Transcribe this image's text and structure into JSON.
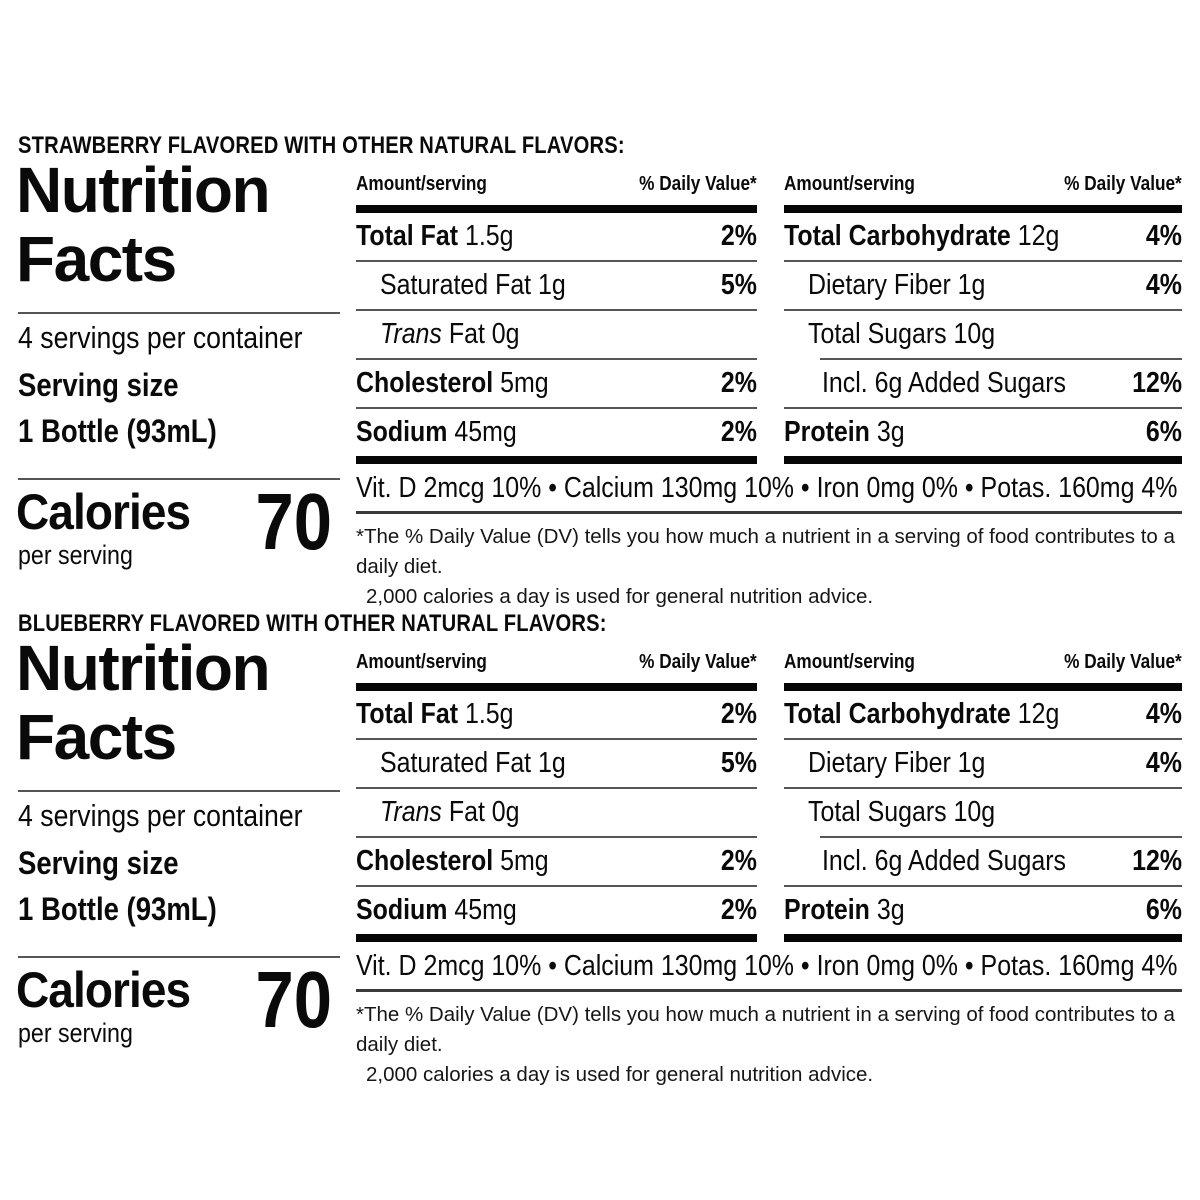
{
  "panels": [
    {
      "flavor_header": "STRAWBERRY FLAVORED WITH OTHER NATURAL FLAVORS:",
      "title_line1": "Nutrition",
      "title_line2": "Facts",
      "servings_per_container": "4 servings per container",
      "serving_size_label": "Serving size",
      "serving_size_value": "1 Bottle (93mL)",
      "calories_label": "Calories",
      "calories_sublabel": "per serving",
      "calories_value": "70",
      "col1": {
        "header_amount": "Amount/serving",
        "header_dv": "% Daily Value*",
        "rows": [
          {
            "parts": [
              {
                "t": "Total Fat",
                "s": "b"
              },
              {
                "t": " 1.5g",
                "s": "r"
              }
            ],
            "dv": "2%",
            "indent": 0
          },
          {
            "parts": [
              {
                "t": "Saturated Fat 1g",
                "s": "r"
              }
            ],
            "dv": "5%",
            "indent": 1
          },
          {
            "parts": [
              {
                "t": "Trans",
                "s": "i"
              },
              {
                "t": " Fat 0g",
                "s": "r"
              }
            ],
            "dv": "",
            "indent": 1
          },
          {
            "parts": [
              {
                "t": "Cholesterol",
                "s": "b"
              },
              {
                "t": " 5mg",
                "s": "r"
              }
            ],
            "dv": "2%",
            "indent": 0
          },
          {
            "parts": [
              {
                "t": "Sodium",
                "s": "b"
              },
              {
                "t": " 45mg",
                "s": "r"
              }
            ],
            "dv": "2%",
            "indent": 0
          }
        ]
      },
      "col2": {
        "header_amount": "Amount/serving",
        "header_dv": "% Daily Value*",
        "rows": [
          {
            "parts": [
              {
                "t": "Total Carbohydrate",
                "s": "b"
              },
              {
                "t": " 12g",
                "s": "r"
              }
            ],
            "dv": "4%",
            "indent": 0
          },
          {
            "parts": [
              {
                "t": "Dietary Fiber 1g",
                "s": "r"
              }
            ],
            "dv": "4%",
            "indent": 1
          },
          {
            "parts": [
              {
                "t": "Total Sugars 10g",
                "s": "r"
              }
            ],
            "dv": "",
            "indent": 1
          },
          {
            "parts": [
              {
                "t": "Incl. 6g Added Sugars",
                "s": "r"
              }
            ],
            "dv": "12%",
            "indent": 2,
            "sep_indent": true
          },
          {
            "parts": [
              {
                "t": "Protein",
                "s": "b"
              },
              {
                "t": " 3g",
                "s": "r"
              }
            ],
            "dv": "6%",
            "indent": 0
          }
        ]
      },
      "micronutrients": "Vit. D 2mcg 10% • Calcium 130mg 10% • Iron 0mg 0% • Potas. 160mg 4%",
      "footnote_line1": "*The % Daily Value (DV) tells you how much a nutrient in a serving of food contributes to a daily diet.",
      "footnote_line2": "2,000 calories a day is used for general nutrition advice."
    },
    {
      "flavor_header": "BLUEBERRY FLAVORED WITH OTHER NATURAL FLAVORS:",
      "title_line1": "Nutrition",
      "title_line2": "Facts",
      "servings_per_container": "4 servings per container",
      "serving_size_label": "Serving size",
      "serving_size_value": "1 Bottle (93mL)",
      "calories_label": "Calories",
      "calories_sublabel": "per serving",
      "calories_value": "70",
      "col1": {
        "header_amount": "Amount/serving",
        "header_dv": "% Daily Value*",
        "rows": [
          {
            "parts": [
              {
                "t": "Total Fat",
                "s": "b"
              },
              {
                "t": " 1.5g",
                "s": "r"
              }
            ],
            "dv": "2%",
            "indent": 0
          },
          {
            "parts": [
              {
                "t": "Saturated Fat 1g",
                "s": "r"
              }
            ],
            "dv": "5%",
            "indent": 1
          },
          {
            "parts": [
              {
                "t": "Trans",
                "s": "i"
              },
              {
                "t": " Fat 0g",
                "s": "r"
              }
            ],
            "dv": "",
            "indent": 1
          },
          {
            "parts": [
              {
                "t": "Cholesterol",
                "s": "b"
              },
              {
                "t": " 5mg",
                "s": "r"
              }
            ],
            "dv": "2%",
            "indent": 0
          },
          {
            "parts": [
              {
                "t": "Sodium",
                "s": "b"
              },
              {
                "t": " 45mg",
                "s": "r"
              }
            ],
            "dv": "2%",
            "indent": 0
          }
        ]
      },
      "col2": {
        "header_amount": "Amount/serving",
        "header_dv": "% Daily Value*",
        "rows": [
          {
            "parts": [
              {
                "t": "Total Carbohydrate",
                "s": "b"
              },
              {
                "t": " 12g",
                "s": "r"
              }
            ],
            "dv": "4%",
            "indent": 0
          },
          {
            "parts": [
              {
                "t": "Dietary Fiber 1g",
                "s": "r"
              }
            ],
            "dv": "4%",
            "indent": 1
          },
          {
            "parts": [
              {
                "t": "Total Sugars 10g",
                "s": "r"
              }
            ],
            "dv": "",
            "indent": 1
          },
          {
            "parts": [
              {
                "t": "Incl. 6g Added Sugars",
                "s": "r"
              }
            ],
            "dv": "12%",
            "indent": 2,
            "sep_indent": true
          },
          {
            "parts": [
              {
                "t": "Protein",
                "s": "b"
              },
              {
                "t": " 3g",
                "s": "r"
              }
            ],
            "dv": "6%",
            "indent": 0
          }
        ]
      },
      "micronutrients": "Vit. D 2mcg 10% • Calcium 130mg 10% • Iron 0mg 0% • Potas. 160mg 4%",
      "footnote_line1": "*The % Daily Value (DV) tells you how much a nutrient in a serving of food contributes to a daily diet.",
      "footnote_line2": "2,000 calories a day is used for general nutrition advice."
    }
  ]
}
